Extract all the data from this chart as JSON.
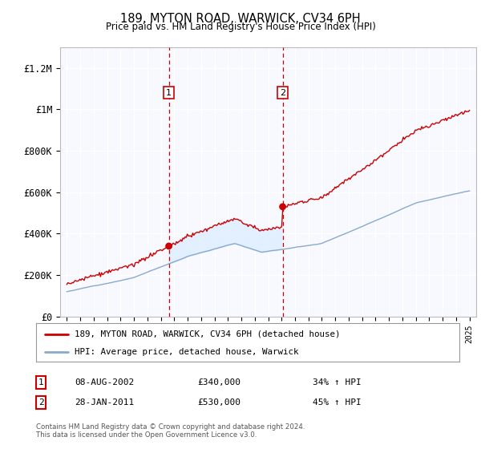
{
  "title": "189, MYTON ROAD, WARWICK, CV34 6PH",
  "subtitle": "Price paid vs. HM Land Registry's House Price Index (HPI)",
  "sale1_date": 2002.6,
  "sale1_price": 340000,
  "sale1_label": "1",
  "sale1_display": "08-AUG-2002",
  "sale1_pct": "34% ↑ HPI",
  "sale2_date": 2011.08,
  "sale2_price": 530000,
  "sale2_label": "2",
  "sale2_display": "28-JAN-2011",
  "sale2_pct": "45% ↑ HPI",
  "red_line_color": "#cc0000",
  "blue_line_color": "#88aacc",
  "vline_color": "#cc0000",
  "fill_color": "#ddeeff",
  "plot_bg": "#f8f8ff",
  "ylim": [
    0,
    1300000
  ],
  "xlim": [
    1994.5,
    2025.5
  ],
  "yticks": [
    0,
    200000,
    400000,
    600000,
    800000,
    1000000,
    1200000
  ],
  "ytick_labels": [
    "£0",
    "£200K",
    "£400K",
    "£600K",
    "£800K",
    "£1M",
    "£1.2M"
  ],
  "xticks": [
    1995,
    1996,
    1997,
    1998,
    1999,
    2000,
    2001,
    2002,
    2003,
    2004,
    2005,
    2006,
    2007,
    2008,
    2009,
    2010,
    2011,
    2012,
    2013,
    2014,
    2015,
    2016,
    2017,
    2018,
    2019,
    2020,
    2021,
    2022,
    2023,
    2024,
    2025
  ],
  "footer": "Contains HM Land Registry data © Crown copyright and database right 2024.\nThis data is licensed under the Open Government Licence v3.0.",
  "legend_line1": "189, MYTON ROAD, WARWICK, CV34 6PH (detached house)",
  "legend_line2": "HPI: Average price, detached house, Warwick"
}
